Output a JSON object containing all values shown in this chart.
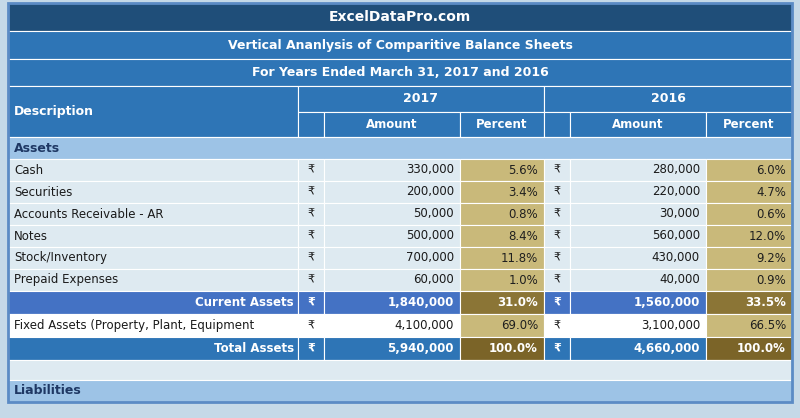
{
  "title1": "ExcelDataPro.com",
  "title2": "Vertical Ananlysis of Comparitive Balance Sheets",
  "title3": "For Years Ended March 31, 2017 and 2016",
  "header_bg": "#1F4E79",
  "header_fg": "#FFFFFF",
  "subheader_bg": "#2E75B6",
  "subheader_fg": "#FFFFFF",
  "section_bg": "#9DC3E6",
  "section_fg": "#1F3864",
  "row_bg": "#DEEAF1",
  "row_bg_white": "#F2F7FB",
  "subtotal_bg": "#4472C4",
  "subtotal_fg": "#FFFFFF",
  "data_pct_bg": "#C9B97A",
  "data_pct_fg": "#1F1F1F",
  "subtotal_pct_bg": "#8B7536",
  "subtotal_pct_fg": "#FFFFFF",
  "total_bg": "#2E75B6",
  "total_fg": "#FFFFFF",
  "total_pct_bg": "#7B6428",
  "total_pct_fg": "#FFFFFF",
  "fixed_bg": "#FFFFFF",
  "fixed_pct_bg": "#C9B97A",
  "fixed_pct_fg": "#1F1F1F",
  "empty_bg": "#DEEAF1",
  "border_white": "#FFFFFF",
  "border_outer": "#5B8BC5",
  "fig_bg": "#C5D9E8",
  "rows": [
    {
      "type": "data",
      "desc": "Cash",
      "s1": "₹",
      "a1": "330,000",
      "p1": "5.6%",
      "s2": "₹",
      "a2": "280,000",
      "p2": "6.0%"
    },
    {
      "type": "data",
      "desc": "Securities",
      "s1": "₹",
      "a1": "200,000",
      "p1": "3.4%",
      "s2": "₹",
      "a2": "220,000",
      "p2": "4.7%"
    },
    {
      "type": "data",
      "desc": "Accounts Receivable - AR",
      "s1": "₹",
      "a1": "50,000",
      "p1": "0.8%",
      "s2": "₹",
      "a2": "30,000",
      "p2": "0.6%"
    },
    {
      "type": "data",
      "desc": "Notes",
      "s1": "₹",
      "a1": "500,000",
      "p1": "8.4%",
      "s2": "₹",
      "a2": "560,000",
      "p2": "12.0%"
    },
    {
      "type": "data",
      "desc": "Stock/Inventory",
      "s1": "₹",
      "a1": "700,000",
      "p1": "11.8%",
      "s2": "₹",
      "a2": "430,000",
      "p2": "9.2%"
    },
    {
      "type": "data",
      "desc": "Prepaid Expenses",
      "s1": "₹",
      "a1": "60,000",
      "p1": "1.0%",
      "s2": "₹",
      "a2": "40,000",
      "p2": "0.9%"
    },
    {
      "type": "subtotal",
      "desc": "Current Assets",
      "s1": "₹",
      "a1": "1,840,000",
      "p1": "31.0%",
      "s2": "₹",
      "a2": "1,560,000",
      "p2": "33.5%"
    },
    {
      "type": "fixed",
      "desc": "Fixed Assets (Property, Plant, Equipment",
      "s1": "₹",
      "a1": "4,100,000",
      "p1": "69.0%",
      "s2": "₹",
      "a2": "3,100,000",
      "p2": "66.5%"
    },
    {
      "type": "total",
      "desc": "Total Assets",
      "s1": "₹",
      "a1": "5,940,000",
      "p1": "100.0%",
      "s2": "₹",
      "a2": "4,660,000",
      "p2": "100.0%"
    }
  ]
}
